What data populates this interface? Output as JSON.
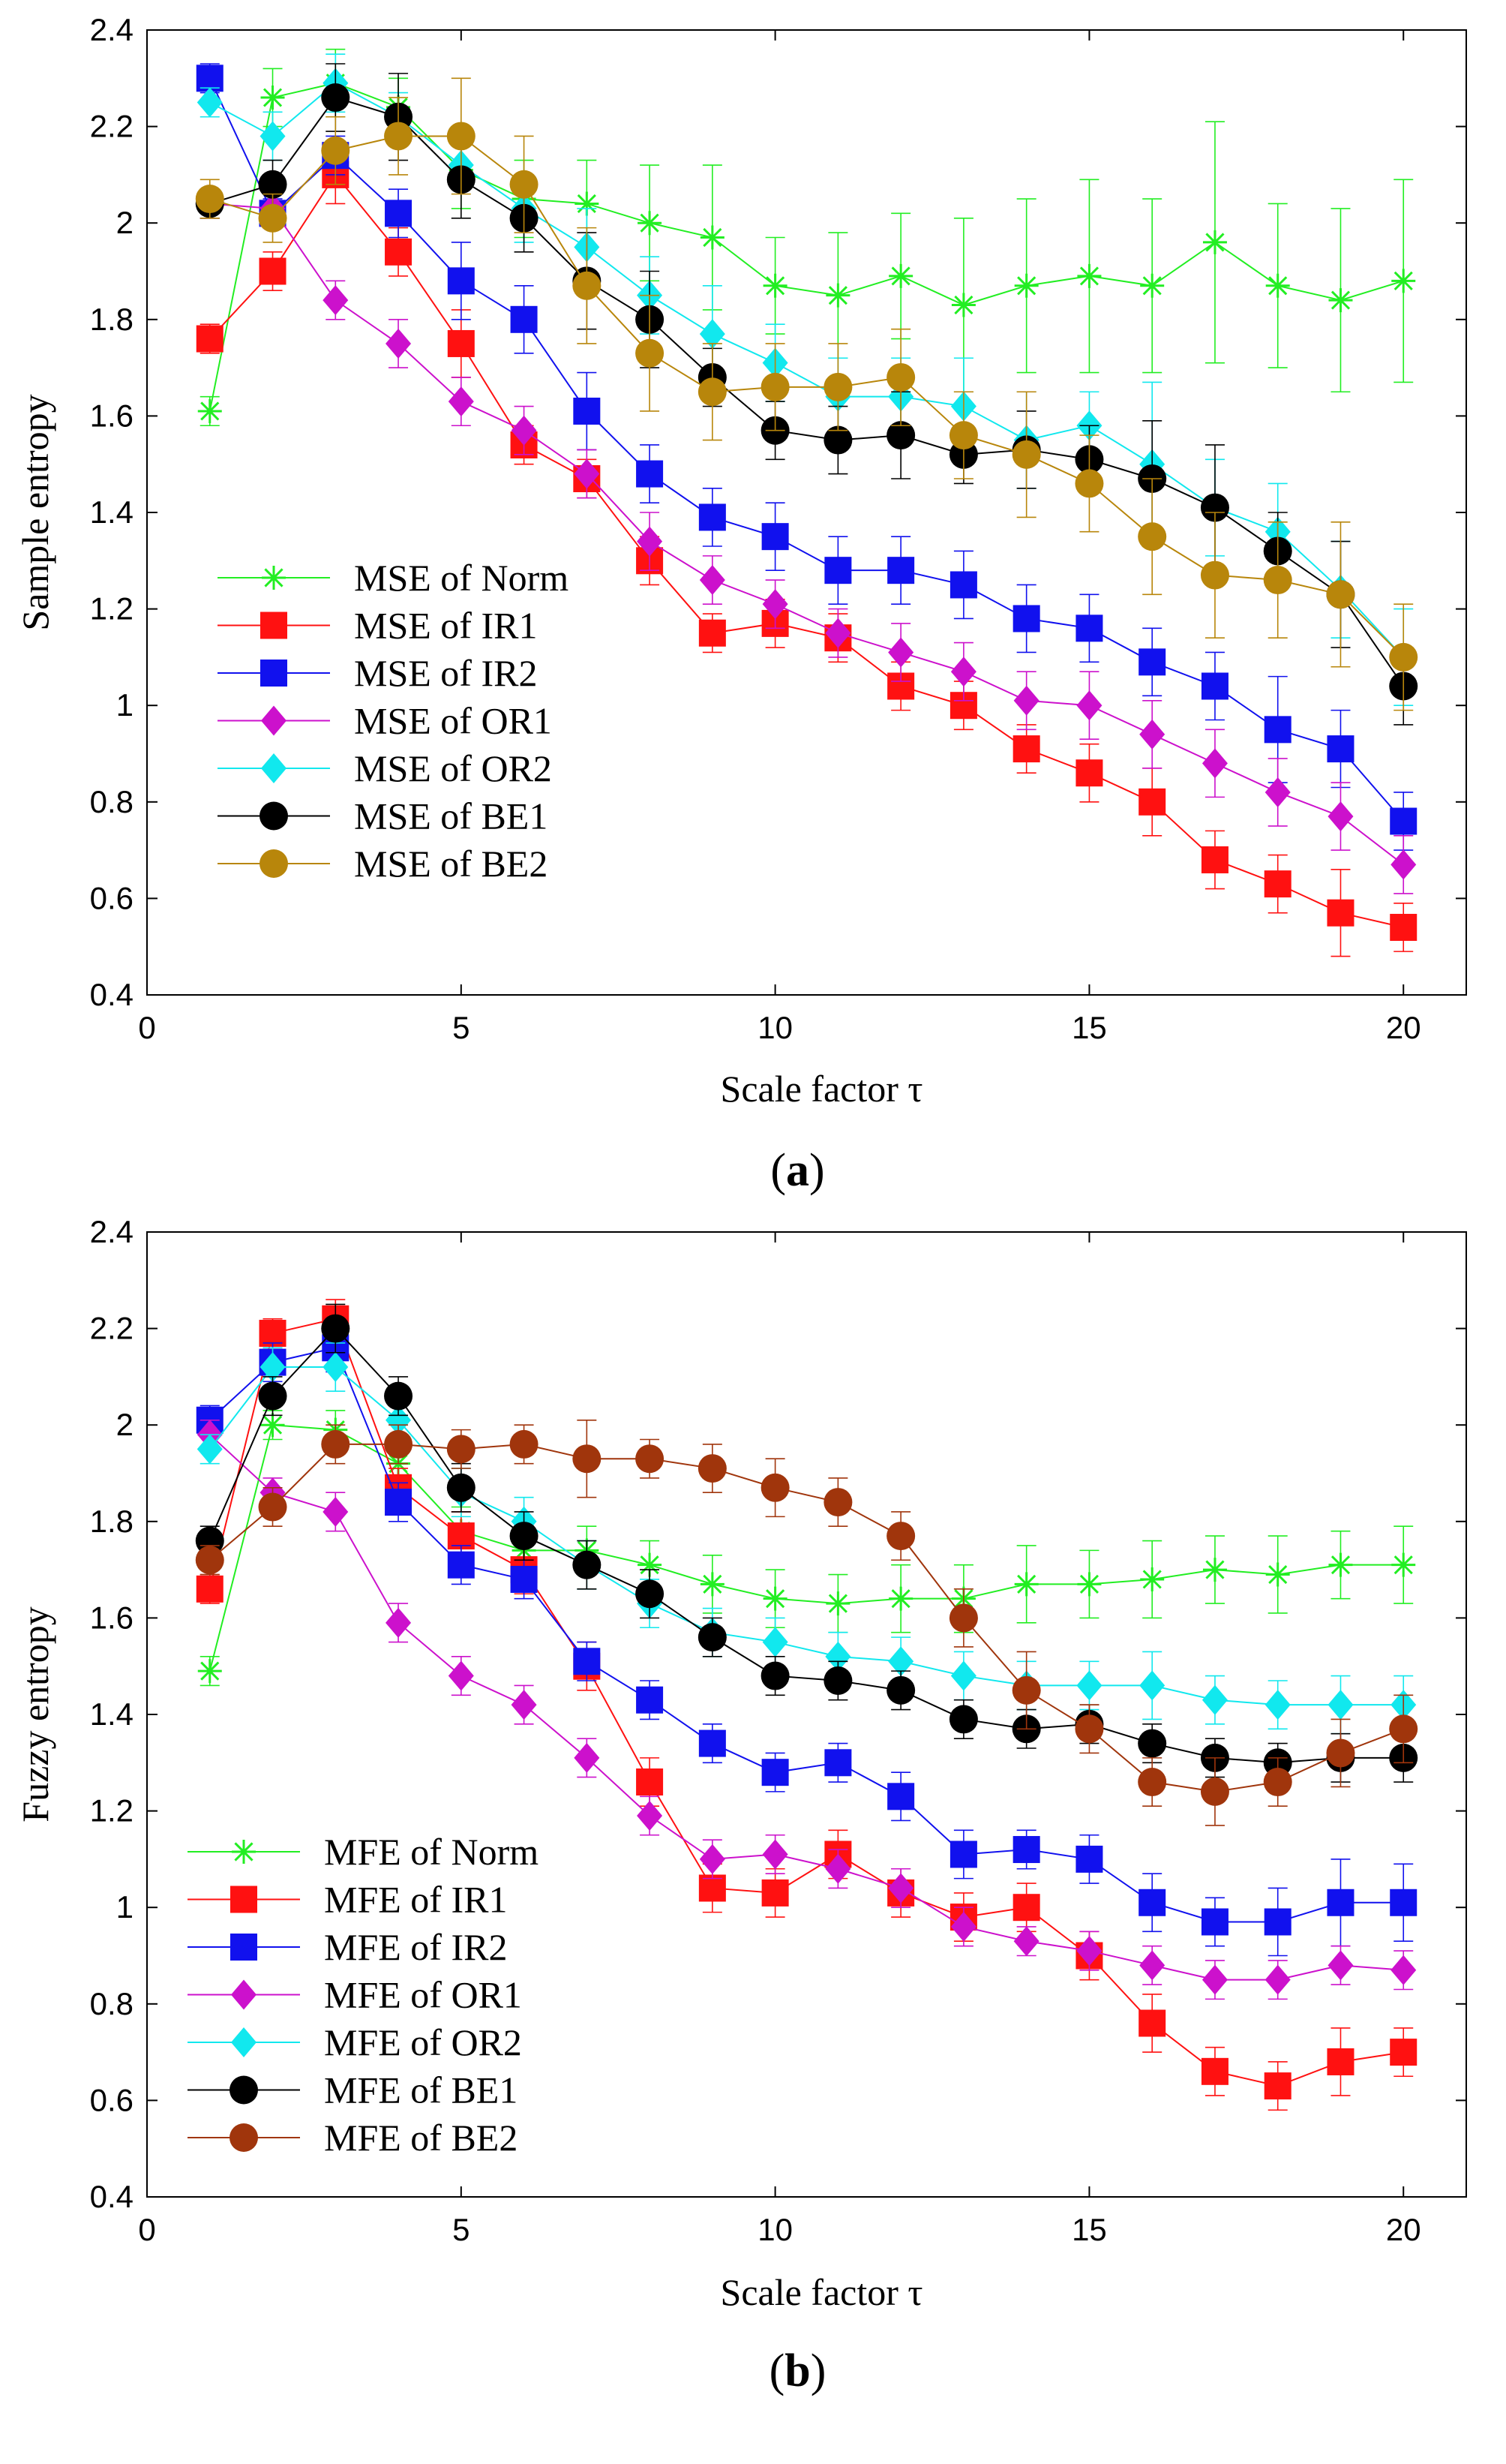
{
  "chart_data": [
    {
      "type": "line",
      "panel_label": "a",
      "xlabel": "Scale factor τ",
      "ylabel": "Sample entropy",
      "xlim": [
        0,
        21
      ],
      "ylim": [
        0.4,
        2.4
      ],
      "xticks": [
        0,
        5,
        10,
        15,
        20
      ],
      "yticks": [
        0.4,
        0.6,
        0.8,
        1,
        1.2,
        1.4,
        1.6,
        1.8,
        2,
        2.2,
        2.4
      ],
      "xtick_labels": [
        "0",
        "5",
        "10",
        "15",
        "20"
      ],
      "ytick_labels": [
        "0.4",
        "0.6",
        "0.8",
        "1",
        "1.2",
        "1.4",
        "1.6",
        "1.8",
        "2",
        "2.2",
        "2.4"
      ],
      "legend_position": "left",
      "x": [
        1,
        2,
        3,
        4,
        5,
        6,
        7,
        8,
        9,
        10,
        11,
        12,
        13,
        14,
        15,
        16,
        17,
        18,
        19,
        20
      ],
      "series": [
        {
          "name": "MSE of Norm",
          "color": "#22ee22",
          "marker": "star",
          "values": [
            1.61,
            2.26,
            2.29,
            2.24,
            2.11,
            2.05,
            2.04,
            2.0,
            1.97,
            1.87,
            1.85,
            1.89,
            1.83,
            1.87,
            1.89,
            1.87,
            1.96,
            1.87,
            1.84,
            1.88
          ],
          "errors": [
            0.03,
            0.06,
            0.07,
            0.06,
            0.08,
            0.08,
            0.09,
            0.12,
            0.15,
            0.1,
            0.13,
            0.13,
            0.18,
            0.18,
            0.2,
            0.18,
            0.25,
            0.17,
            0.19,
            0.21
          ]
        },
        {
          "name": "MSE of IR1",
          "color": "#ff1111",
          "marker": "square",
          "values": [
            1.76,
            1.9,
            2.1,
            1.94,
            1.75,
            1.54,
            1.47,
            1.3,
            1.15,
            1.17,
            1.14,
            1.04,
            1.0,
            0.91,
            0.86,
            0.8,
            0.68,
            0.63,
            0.57,
            0.54
          ],
          "errors": [
            0.03,
            0.04,
            0.06,
            0.05,
            0.07,
            0.04,
            0.04,
            0.05,
            0.04,
            0.05,
            0.05,
            0.05,
            0.05,
            0.05,
            0.06,
            0.07,
            0.06,
            0.06,
            0.09,
            0.05
          ]
        },
        {
          "name": "MSE of IR2",
          "color": "#1111ee",
          "marker": "square",
          "values": [
            2.3,
            2.02,
            2.14,
            2.02,
            1.88,
            1.8,
            1.61,
            1.48,
            1.39,
            1.35,
            1.28,
            1.28,
            1.25,
            1.18,
            1.16,
            1.09,
            1.04,
            0.95,
            0.91,
            0.76
          ],
          "errors": [
            0.03,
            0.03,
            0.04,
            0.05,
            0.08,
            0.07,
            0.08,
            0.06,
            0.06,
            0.07,
            0.07,
            0.07,
            0.07,
            0.07,
            0.07,
            0.07,
            0.07,
            0.11,
            0.08,
            0.06
          ]
        },
        {
          "name": "MSE of OR1",
          "color": "#cc11cc",
          "marker": "diamond",
          "values": [
            2.04,
            2.03,
            1.84,
            1.75,
            1.63,
            1.57,
            1.48,
            1.34,
            1.26,
            1.21,
            1.15,
            1.11,
            1.07,
            1.01,
            1.0,
            0.94,
            0.88,
            0.82,
            0.77,
            0.67
          ],
          "errors": [
            0.03,
            0.03,
            0.04,
            0.05,
            0.05,
            0.05,
            0.05,
            0.06,
            0.05,
            0.05,
            0.05,
            0.06,
            0.06,
            0.06,
            0.07,
            0.07,
            0.07,
            0.07,
            0.07,
            0.06
          ]
        },
        {
          "name": "MSE of OR2",
          "color": "#11e8ee",
          "marker": "diamond",
          "values": [
            2.25,
            2.18,
            2.29,
            2.22,
            2.12,
            2.03,
            1.95,
            1.85,
            1.77,
            1.71,
            1.64,
            1.64,
            1.62,
            1.55,
            1.58,
            1.5,
            1.41,
            1.36,
            1.24,
            1.1
          ],
          "errors": [
            0.03,
            0.05,
            0.06,
            0.05,
            0.05,
            0.07,
            0.08,
            0.08,
            0.1,
            0.08,
            0.08,
            0.08,
            0.1,
            0.1,
            0.07,
            0.17,
            0.1,
            0.1,
            0.1,
            0.1
          ]
        },
        {
          "name": "MSE of BE1",
          "color": "#000000",
          "marker": "circle",
          "values": [
            2.04,
            2.08,
            2.26,
            2.22,
            2.09,
            2.01,
            1.88,
            1.8,
            1.68,
            1.57,
            1.55,
            1.56,
            1.52,
            1.53,
            1.51,
            1.47,
            1.41,
            1.32,
            1.23,
            1.04
          ],
          "errors": [
            0.03,
            0.05,
            0.07,
            0.09,
            0.08,
            0.07,
            0.1,
            0.1,
            0.06,
            0.06,
            0.07,
            0.09,
            0.06,
            0.08,
            0.07,
            0.12,
            0.13,
            0.08,
            0.11,
            0.08
          ]
        },
        {
          "name": "MSE of BE2",
          "color": "#b8860b",
          "marker": "circle",
          "values": [
            2.05,
            2.01,
            2.15,
            2.18,
            2.18,
            2.08,
            1.87,
            1.73,
            1.65,
            1.66,
            1.66,
            1.68,
            1.56,
            1.52,
            1.46,
            1.35,
            1.27,
            1.26,
            1.23,
            1.1
          ],
          "errors": [
            0.04,
            0.05,
            0.07,
            0.08,
            0.12,
            0.1,
            0.12,
            0.12,
            0.1,
            0.09,
            0.09,
            0.1,
            0.09,
            0.13,
            0.1,
            0.12,
            0.13,
            0.12,
            0.15,
            0.11
          ]
        }
      ]
    },
    {
      "type": "line",
      "panel_label": "b",
      "xlabel": "Scale factor τ",
      "ylabel": "Fuzzy entropy",
      "xlim": [
        0,
        21
      ],
      "ylim": [
        0.4,
        2.4
      ],
      "xticks": [
        0,
        5,
        10,
        15,
        20
      ],
      "yticks": [
        0.4,
        0.6,
        0.8,
        1,
        1.2,
        1.4,
        1.6,
        1.8,
        2,
        2.2,
        2.4
      ],
      "xtick_labels": [
        "0",
        "5",
        "10",
        "15",
        "20"
      ],
      "ytick_labels": [
        "0.4",
        "0.6",
        "0.8",
        "1",
        "1.2",
        "1.4",
        "1.6",
        "1.8",
        "2",
        "2.2",
        "2.4"
      ],
      "legend_position": "lower-left",
      "x": [
        1,
        2,
        3,
        4,
        5,
        6,
        7,
        8,
        9,
        10,
        11,
        12,
        13,
        14,
        15,
        16,
        17,
        18,
        19,
        20
      ],
      "series": [
        {
          "name": "MFE of Norm",
          "color": "#22ee22",
          "marker": "star",
          "values": [
            1.49,
            2.0,
            1.99,
            1.92,
            1.78,
            1.74,
            1.74,
            1.71,
            1.67,
            1.64,
            1.63,
            1.64,
            1.64,
            1.67,
            1.67,
            1.68,
            1.7,
            1.69,
            1.71,
            1.71
          ],
          "errors": [
            0.03,
            0.03,
            0.04,
            0.04,
            0.05,
            0.05,
            0.05,
            0.05,
            0.06,
            0.06,
            0.06,
            0.07,
            0.07,
            0.08,
            0.07,
            0.08,
            0.07,
            0.08,
            0.07,
            0.08
          ]
        },
        {
          "name": "MFE of IR1",
          "color": "#ff1111",
          "marker": "square",
          "values": [
            1.66,
            2.19,
            2.22,
            1.87,
            1.77,
            1.7,
            1.5,
            1.26,
            1.04,
            1.03,
            1.11,
            1.03,
            0.98,
            1.0,
            0.9,
            0.76,
            0.66,
            0.63,
            0.68,
            0.7
          ],
          "errors": [
            0.03,
            0.03,
            0.04,
            0.04,
            0.05,
            0.05,
            0.05,
            0.05,
            0.05,
            0.05,
            0.05,
            0.05,
            0.05,
            0.05,
            0.05,
            0.06,
            0.05,
            0.05,
            0.07,
            0.05
          ]
        },
        {
          "name": "MFE of IR2",
          "color": "#1111ee",
          "marker": "square",
          "values": [
            2.01,
            2.13,
            2.16,
            1.84,
            1.71,
            1.68,
            1.51,
            1.43,
            1.34,
            1.28,
            1.3,
            1.23,
            1.11,
            1.12,
            1.1,
            1.01,
            0.97,
            0.97,
            1.01,
            1.01
          ],
          "errors": [
            0.03,
            0.04,
            0.05,
            0.04,
            0.04,
            0.04,
            0.04,
            0.04,
            0.04,
            0.04,
            0.04,
            0.05,
            0.05,
            0.04,
            0.05,
            0.06,
            0.05,
            0.07,
            0.09,
            0.08
          ]
        },
        {
          "name": "MFE of OR1",
          "color": "#cc11cc",
          "marker": "diamond",
          "values": [
            1.98,
            1.86,
            1.82,
            1.59,
            1.48,
            1.42,
            1.31,
            1.19,
            1.1,
            1.11,
            1.08,
            1.04,
            0.96,
            0.93,
            0.91,
            0.88,
            0.85,
            0.85,
            0.88,
            0.87
          ],
          "errors": [
            0.03,
            0.03,
            0.04,
            0.04,
            0.04,
            0.04,
            0.04,
            0.04,
            0.04,
            0.04,
            0.04,
            0.04,
            0.04,
            0.03,
            0.04,
            0.04,
            0.04,
            0.04,
            0.04,
            0.04
          ]
        },
        {
          "name": "MFE of OR2",
          "color": "#11e8ee",
          "marker": "diamond",
          "values": [
            1.95,
            2.12,
            2.12,
            2.01,
            1.86,
            1.8,
            1.71,
            1.63,
            1.57,
            1.55,
            1.52,
            1.51,
            1.48,
            1.46,
            1.46,
            1.46,
            1.43,
            1.42,
            1.42,
            1.42
          ],
          "errors": [
            0.03,
            0.04,
            0.05,
            0.05,
            0.05,
            0.05,
            0.05,
            0.05,
            0.05,
            0.05,
            0.05,
            0.05,
            0.05,
            0.05,
            0.05,
            0.07,
            0.05,
            0.05,
            0.06,
            0.06
          ]
        },
        {
          "name": "MFE of BE1",
          "color": "#000000",
          "marker": "circle",
          "values": [
            1.76,
            2.06,
            2.2,
            2.06,
            1.87,
            1.77,
            1.71,
            1.65,
            1.56,
            1.48,
            1.47,
            1.45,
            1.39,
            1.37,
            1.38,
            1.34,
            1.31,
            1.3,
            1.31,
            1.31
          ],
          "errors": [
            0.03,
            0.04,
            0.05,
            0.04,
            0.05,
            0.05,
            0.05,
            0.05,
            0.04,
            0.04,
            0.04,
            0.04,
            0.04,
            0.04,
            0.04,
            0.04,
            0.04,
            0.04,
            0.05,
            0.05
          ]
        },
        {
          "name": "MFE of BE2",
          "color": "#a0350c",
          "marker": "circle",
          "values": [
            1.72,
            1.83,
            1.96,
            1.96,
            1.95,
            1.96,
            1.93,
            1.93,
            1.91,
            1.87,
            1.84,
            1.77,
            1.6,
            1.45,
            1.37,
            1.26,
            1.24,
            1.26,
            1.32,
            1.37
          ],
          "errors": [
            0.03,
            0.04,
            0.04,
            0.04,
            0.04,
            0.04,
            0.08,
            0.04,
            0.05,
            0.06,
            0.05,
            0.05,
            0.06,
            0.08,
            0.05,
            0.05,
            0.07,
            0.05,
            0.07,
            0.07
          ]
        }
      ]
    }
  ]
}
